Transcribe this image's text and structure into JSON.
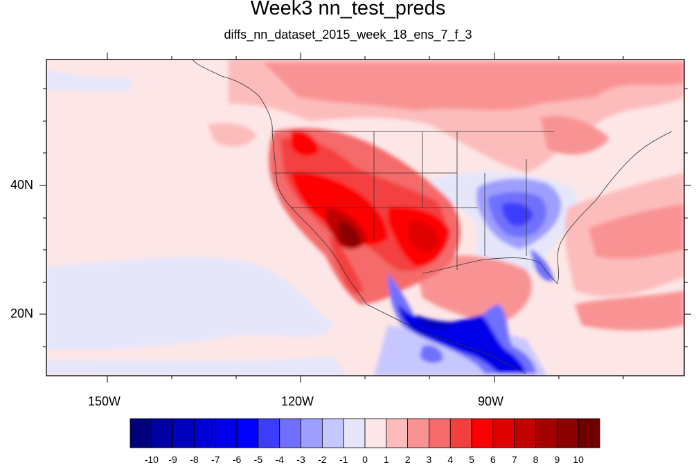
{
  "title": "Week3 nn_test_preds",
  "subtitle": "diffs_nn_dataset_2015_week_18_ens_7_f_3",
  "axes": {
    "x_ticks": [
      "150W",
      "120W",
      "90W"
    ],
    "y_ticks": [
      "40N",
      "20N"
    ]
  },
  "colorbar": {
    "labels": [
      "-10",
      "-9",
      "-8",
      "-7",
      "-6",
      "-5",
      "-4",
      "-3",
      "-2",
      "-1",
      "0",
      "1",
      "2",
      "3",
      "4",
      "5",
      "6",
      "7",
      "8",
      "9",
      "10"
    ],
    "colors": [
      "#00007a",
      "#0000a3",
      "#0000bf",
      "#0000d6",
      "#0000e8",
      "#0000ff",
      "#3d3dff",
      "#7070ff",
      "#9e9eff",
      "#c7c7ff",
      "#e6e6fb",
      "#fde6e6",
      "#fcbcbc",
      "#f99393",
      "#f56a6a",
      "#f43f3f",
      "#ff0000",
      "#e00000",
      "#c20000",
      "#a30000",
      "#8a0000",
      "#6e0000"
    ]
  },
  "map": {
    "region": "North America / Eastern Pacific",
    "lon_range": [
      -160,
      -60
    ],
    "lat_range": [
      11,
      60
    ]
  }
}
